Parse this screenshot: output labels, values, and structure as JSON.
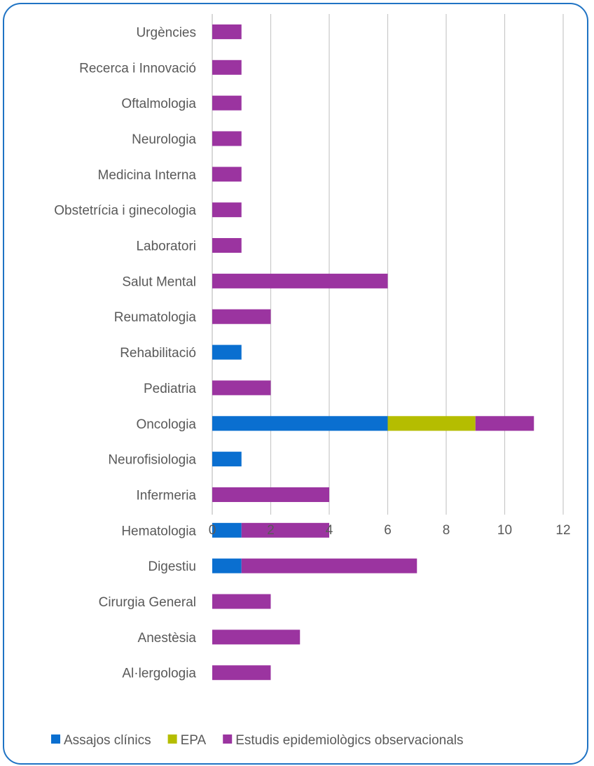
{
  "chart_data": {
    "type": "bar",
    "orientation": "horizontal",
    "stacked": true,
    "categories": [
      "Urgències",
      "Recerca i Innovació",
      "Oftalmologia",
      "Neurologia",
      "Medicina Interna",
      "Obstetrícia i ginecologia",
      "Laboratori",
      "Salut Mental",
      "Reumatologia",
      "Rehabilitació",
      "Pediatria",
      "Oncologia",
      "Neurofisiologia",
      "Infermeria",
      "Hematologia",
      "Digestiu",
      "Cirurgia General",
      "Anestèsia",
      "Al·lergologia"
    ],
    "series": [
      {
        "name": "Assajos clínics",
        "color": "#0a6fd0",
        "values": [
          0,
          0,
          0,
          0,
          0,
          0,
          0,
          0,
          0,
          1,
          0,
          6,
          1,
          0,
          1,
          1,
          0,
          0,
          0
        ]
      },
      {
        "name": "EPA",
        "color": "#b5bd00",
        "values": [
          0,
          0,
          0,
          0,
          0,
          0,
          0,
          0,
          0,
          0,
          0,
          3,
          0,
          0,
          0,
          0,
          0,
          0,
          0
        ]
      },
      {
        "name": "Estudis epidemiològics observacionals",
        "color": "#9b34a0",
        "values": [
          1,
          1,
          1,
          1,
          1,
          1,
          1,
          6,
          2,
          0,
          2,
          2,
          0,
          4,
          3,
          6,
          2,
          3,
          2
        ]
      }
    ],
    "xlim": [
      0,
      12
    ],
    "xticks": [
      "0",
      "2",
      "4",
      "6",
      "8",
      "10",
      "12"
    ],
    "grid": true,
    "legend_position": "bottom",
    "title": "",
    "xlabel": "",
    "ylabel": ""
  }
}
